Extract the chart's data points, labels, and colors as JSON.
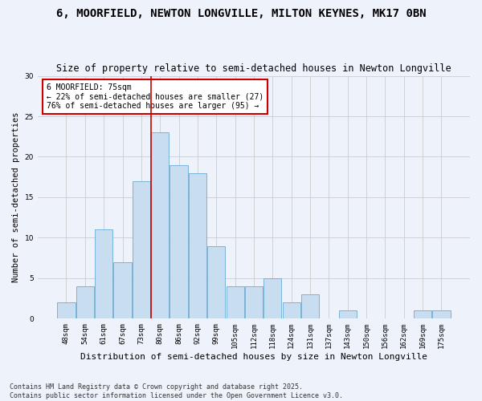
{
  "title": "6, MOORFIELD, NEWTON LONGVILLE, MILTON KEYNES, MK17 0BN",
  "subtitle": "Size of property relative to semi-detached houses in Newton Longville",
  "xlabel": "Distribution of semi-detached houses by size in Newton Longville",
  "ylabel": "Number of semi-detached properties",
  "categories": [
    "48sqm",
    "54sqm",
    "61sqm",
    "67sqm",
    "73sqm",
    "80sqm",
    "86sqm",
    "92sqm",
    "99sqm",
    "105sqm",
    "112sqm",
    "118sqm",
    "124sqm",
    "131sqm",
    "137sqm",
    "143sqm",
    "150sqm",
    "156sqm",
    "162sqm",
    "169sqm",
    "175sqm"
  ],
  "values": [
    2,
    4,
    11,
    7,
    17,
    23,
    19,
    18,
    9,
    4,
    4,
    5,
    2,
    3,
    0,
    1,
    0,
    0,
    0,
    1,
    1
  ],
  "bar_color": "#c9ddf0",
  "bar_edge_color": "#6aaad4",
  "vline_index": 4,
  "annotation_title": "6 MOORFIELD: 75sqm",
  "annotation_line1": "← 22% of semi-detached houses are smaller (27)",
  "annotation_line2": "76% of semi-detached houses are larger (95) →",
  "annotation_box_color": "#ffffff",
  "annotation_box_edge": "#cc0000",
  "vline_color": "#cc0000",
  "ylim": [
    0,
    30
  ],
  "yticks": [
    0,
    5,
    10,
    15,
    20,
    25,
    30
  ],
  "grid_color": "#cccccc",
  "background_color": "#eef2fb",
  "footer": "Contains HM Land Registry data © Crown copyright and database right 2025.\nContains public sector information licensed under the Open Government Licence v3.0.",
  "title_fontsize": 10,
  "subtitle_fontsize": 8.5,
  "xlabel_fontsize": 8,
  "ylabel_fontsize": 7.5,
  "tick_fontsize": 6.5,
  "annotation_fontsize": 7,
  "footer_fontsize": 6
}
